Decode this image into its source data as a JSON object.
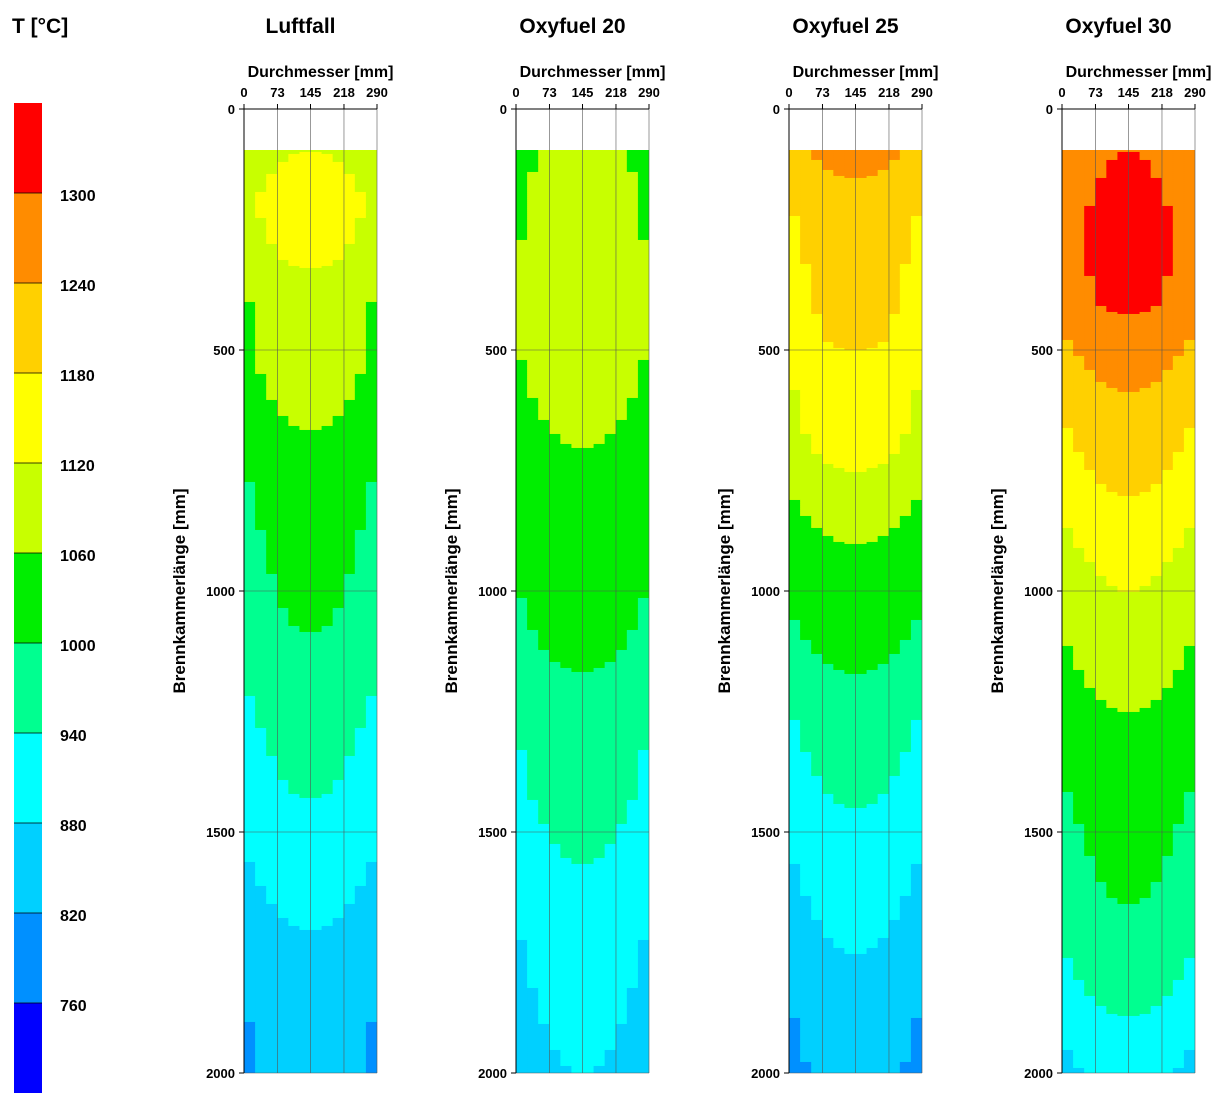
{
  "chart_data": {
    "type": "heatmap",
    "legend": {
      "title": "T [°C]",
      "levels": [
        {
          "min": 700,
          "max": 760,
          "color": "#0000ff"
        },
        {
          "min": 760,
          "max": 820,
          "color": "#0090ff"
        },
        {
          "min": 820,
          "max": 880,
          "color": "#00d0ff"
        },
        {
          "min": 880,
          "max": 940,
          "color": "#00ffff"
        },
        {
          "min": 940,
          "max": 1000,
          "color": "#00ff90"
        },
        {
          "min": 1000,
          "max": 1060,
          "color": "#00ee00"
        },
        {
          "min": 1060,
          "max": 1120,
          "color": "#c8ff00"
        },
        {
          "min": 1120,
          "max": 1180,
          "color": "#ffff00"
        },
        {
          "min": 1180,
          "max": 1240,
          "color": "#ffd000"
        },
        {
          "min": 1240,
          "max": 1300,
          "color": "#ff8c00"
        },
        {
          "min": 1300,
          "max": 1360,
          "color": "#ff0000"
        }
      ],
      "tick_labels": [
        "760",
        "820",
        "880",
        "940",
        "1000",
        "1060",
        "1120",
        "1180",
        "1240",
        "1300"
      ]
    },
    "xlabel": "Durchmesser [mm]",
    "ylabel": "Brennkammerlänge [mm]",
    "x_ticks": [
      "0",
      "73",
      "145",
      "218",
      "290"
    ],
    "y_ticks": [
      "0",
      "500",
      "1000",
      "1500",
      "2000"
    ],
    "xlim": [
      0,
      290
    ],
    "ylim": [
      0,
      2000
    ],
    "data_start_y": 85,
    "grid": true,
    "panels": [
      {
        "title": "Luftfall",
        "profile": [
          [
            85,
            1120
          ],
          [
            190,
            1150
          ],
          [
            300,
            1130
          ],
          [
            420,
            1090
          ],
          [
            540,
            1085
          ],
          [
            620,
            1070
          ],
          [
            750,
            1040
          ],
          [
            900,
            1020
          ],
          [
            1050,
            1005
          ],
          [
            1150,
            990
          ],
          [
            1300,
            960
          ],
          [
            1400,
            945
          ],
          [
            1550,
            920
          ],
          [
            1700,
            880
          ],
          [
            1850,
            860
          ],
          [
            2000,
            850
          ]
        ]
      },
      {
        "title": "Oxyfuel 20",
        "profile": [
          [
            85,
            1080
          ],
          [
            300,
            1100
          ],
          [
            500,
            1100
          ],
          [
            620,
            1080
          ],
          [
            700,
            1060
          ],
          [
            800,
            1050
          ],
          [
            1000,
            1040
          ],
          [
            1100,
            1020
          ],
          [
            1200,
            990
          ],
          [
            1400,
            970
          ],
          [
            1500,
            950
          ],
          [
            1700,
            920
          ],
          [
            1850,
            900
          ],
          [
            2000,
            880
          ]
        ]
      },
      {
        "title": "Oxyfuel 25",
        "profile": [
          [
            85,
            1260
          ],
          [
            200,
            1220
          ],
          [
            350,
            1200
          ],
          [
            470,
            1190
          ],
          [
            560,
            1160
          ],
          [
            700,
            1140
          ],
          [
            800,
            1100
          ],
          [
            900,
            1060
          ],
          [
            1050,
            1040
          ],
          [
            1200,
            990
          ],
          [
            1350,
            960
          ],
          [
            1500,
            930
          ],
          [
            1650,
            900
          ],
          [
            1800,
            870
          ],
          [
            2000,
            840
          ]
        ]
      },
      {
        "title": "Oxyfuel 30",
        "profile": [
          [
            85,
            1300
          ],
          [
            250,
            1320
          ],
          [
            400,
            1310
          ],
          [
            520,
            1260
          ],
          [
            650,
            1220
          ],
          [
            800,
            1180
          ],
          [
            950,
            1130
          ],
          [
            1100,
            1100
          ],
          [
            1250,
            1060
          ],
          [
            1400,
            1040
          ],
          [
            1500,
            1020
          ],
          [
            1650,
            1000
          ],
          [
            1750,
            980
          ],
          [
            1850,
            950
          ],
          [
            2000,
            900
          ]
        ]
      }
    ]
  }
}
